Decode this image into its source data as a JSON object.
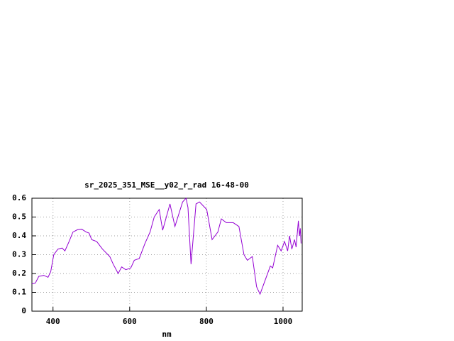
{
  "chart_data": {
    "type": "line",
    "title": "sr_2025_351_MSE__y02_r_rad 16-48-00",
    "x_label": "nm",
    "x": [
      345,
      354,
      363,
      376,
      387,
      394,
      402,
      413,
      424,
      431,
      442,
      452,
      464,
      475,
      487,
      494,
      501,
      514,
      529,
      548,
      557,
      570,
      579,
      590,
      603,
      612,
      625,
      640,
      653,
      664,
      677,
      686,
      705,
      718,
      738,
      747,
      752,
      760,
      773,
      782,
      801,
      815,
      830,
      839,
      852,
      870,
      885,
      898,
      907,
      920,
      931,
      940,
      949,
      958,
      967,
      973,
      986,
      995,
      1004,
      1012,
      1017,
      1023,
      1030,
      1034,
      1040,
      1043,
      1045,
      1047
    ],
    "series": [
      {
        "name": "sr_2025_351_MSE__y02_r_rad",
        "color": "#9400d3",
        "values": [
          0.145,
          0.15,
          0.185,
          0.19,
          0.18,
          0.21,
          0.3,
          0.33,
          0.335,
          0.32,
          0.37,
          0.42,
          0.433,
          0.435,
          0.42,
          0.415,
          0.38,
          0.37,
          0.33,
          0.29,
          0.25,
          0.2,
          0.235,
          0.22,
          0.23,
          0.27,
          0.28,
          0.36,
          0.42,
          0.5,
          0.54,
          0.43,
          0.57,
          0.45,
          0.58,
          0.6,
          0.55,
          0.25,
          0.57,
          0.58,
          0.54,
          0.38,
          0.42,
          0.49,
          0.47,
          0.47,
          0.45,
          0.3,
          0.27,
          0.29,
          0.13,
          0.09,
          0.14,
          0.19,
          0.24,
          0.23,
          0.35,
          0.32,
          0.37,
          0.32,
          0.4,
          0.33,
          0.38,
          0.34,
          0.48,
          0.4,
          0.44,
          0.36
        ]
      }
    ],
    "xlim": [
      345,
      1050
    ],
    "xticks": [
      400,
      600,
      800,
      1000
    ],
    "ylim": [
      0,
      0.6
    ],
    "yticks": [
      0,
      0.1,
      0.2,
      0.3,
      0.4,
      0.5,
      0.6
    ],
    "grid": true
  }
}
